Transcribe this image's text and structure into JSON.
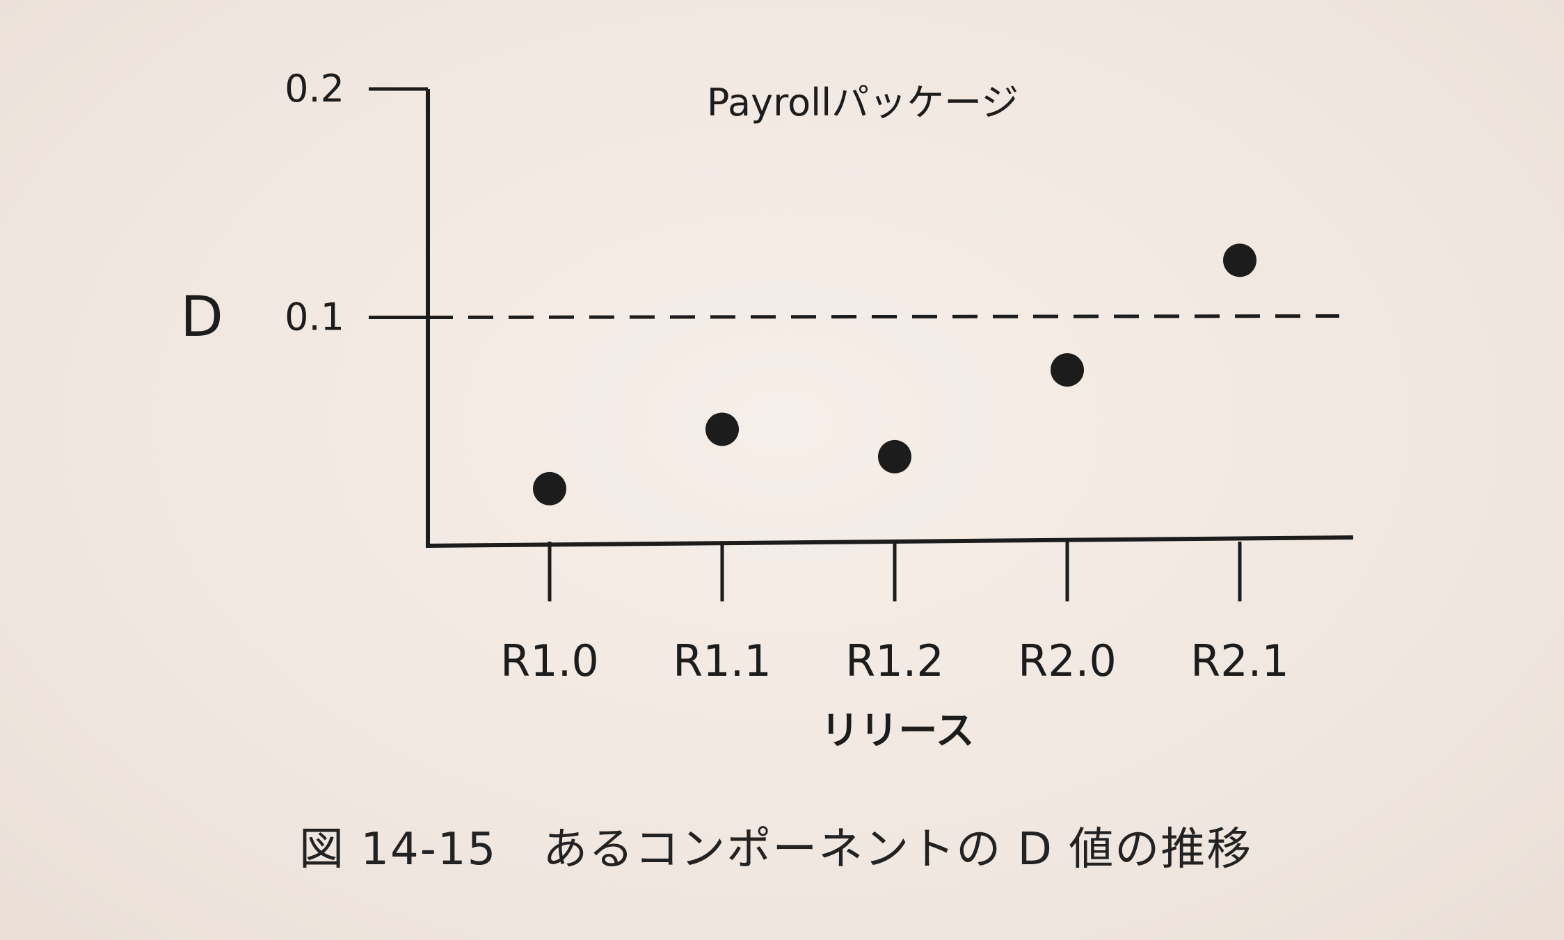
{
  "caption": "図 14-15　あるコンポーネントの D 値の推移",
  "colors": {
    "ink": "#1c1c1c",
    "paper": "#f3ebe4"
  },
  "chart_data": {
    "type": "scatter",
    "title": "Payrollパッケージ",
    "xlabel": "リリース",
    "ylabel": "D",
    "categories": [
      "R1.0",
      "R1.1",
      "R1.2",
      "R2.0",
      "R2.1"
    ],
    "series": [
      {
        "values": [
          0.025,
          0.051,
          0.039,
          0.077,
          0.125
        ]
      }
    ],
    "ylim": [
      0,
      0.2
    ],
    "yticks": [
      {
        "value": 0.2,
        "label": "0.2"
      },
      {
        "value": 0.1,
        "label": "0.1"
      }
    ],
    "reference_line": {
      "value": 0.1,
      "style": "dashed"
    },
    "grid": false,
    "legend": "none"
  }
}
